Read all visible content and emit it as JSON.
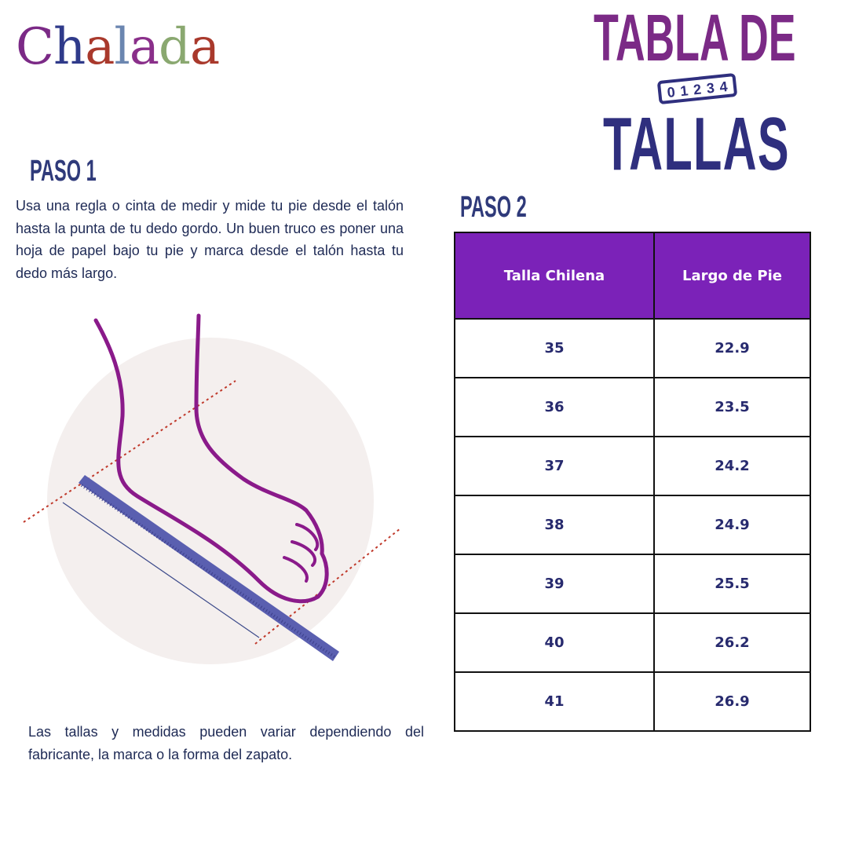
{
  "logo": {
    "text": "Chalada",
    "letters": [
      {
        "ch": "C",
        "color": "#7b2a86"
      },
      {
        "ch": "h",
        "color": "#2f3a8a"
      },
      {
        "ch": "a",
        "color": "#a9392c"
      },
      {
        "ch": "l",
        "color": "#6b86b0"
      },
      {
        "ch": "a",
        "color": "#8a2f8a"
      },
      {
        "ch": "d",
        "color": "#8aa870"
      },
      {
        "ch": "a",
        "color": "#a9392c"
      }
    ]
  },
  "title": {
    "line1": "TABLA DE",
    "line2": "TALLAS",
    "ruler_digits": [
      "0",
      "1",
      "2",
      "3",
      "4"
    ]
  },
  "step1": {
    "heading": "PASO 1",
    "text": "Usa una regla o cinta de medir y mide tu pie desde el talón hasta la punta de tu dedo gordo. Un buen truco es poner una hoja de papel bajo tu pie y marca desde el talón hasta tu dedo más largo."
  },
  "step2": {
    "heading": "PASO 2",
    "table": {
      "headers": [
        "Talla Chilena",
        "Largo de Pie"
      ],
      "rows": [
        [
          "35",
          "22.9"
        ],
        [
          "36",
          "23.5"
        ],
        [
          "37",
          "24.2"
        ],
        [
          "38",
          "24.9"
        ],
        [
          "39",
          "25.5"
        ],
        [
          "40",
          "26.2"
        ],
        [
          "41",
          "26.9"
        ]
      ]
    }
  },
  "note": "Las tallas y medidas pueden variar dependiendo del fabricante, la marca o la forma del zapato.",
  "colors": {
    "purple": "#7b2a86",
    "navy": "#2f2f7e",
    "table_header": "#7b22b8",
    "foot": "#8a1a8a",
    "ruler": "#5a5fb0"
  }
}
